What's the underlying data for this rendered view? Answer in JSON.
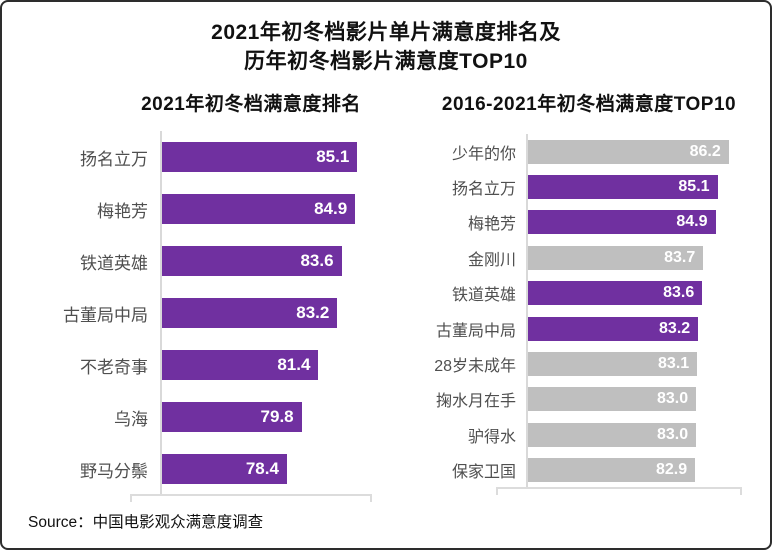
{
  "page": {
    "title_line1": "2021年初冬档影片单片满意度排名及",
    "title_line2": "历年初冬档影片满意度TOP10",
    "source_label": "Source：",
    "source_text": "中国电影观众满意度调查"
  },
  "colors": {
    "purple": "#7030A0",
    "gray": "#BFBFBF",
    "axis_line": "#D9D9D9",
    "label_text": "#4F4F4F",
    "value_text": "#FFFFFF",
    "title_text": "#111111"
  },
  "chart_data": [
    {
      "type": "bar",
      "orientation": "horizontal",
      "title": "2021年初冬档满意度排名",
      "categories": [
        "扬名立万",
        "梅艳芳",
        "铁道英雄",
        "古董局中局",
        "不老奇事",
        "乌海",
        "野马分鬃"
      ],
      "values": [
        85.1,
        84.9,
        83.6,
        83.2,
        81.4,
        79.8,
        78.4
      ],
      "bar_colors": [
        "purple",
        "purple",
        "purple",
        "purple",
        "purple",
        "purple",
        "purple"
      ],
      "xlim": [
        66.5,
        86.5
      ],
      "value_label_position": "inside-end",
      "grid": false,
      "legend": false
    },
    {
      "type": "bar",
      "orientation": "horizontal",
      "title": "2016-2021年初冬档满意度TOP10",
      "categories": [
        "少年的你",
        "扬名立万",
        "梅艳芳",
        "金刚川",
        "铁道英雄",
        "古董局中局",
        "28岁未成年",
        "掬水月在手",
        "驴得水",
        "保家卫国"
      ],
      "values": [
        86.2,
        85.1,
        84.9,
        83.7,
        83.6,
        83.2,
        83.1,
        83.0,
        83.0,
        82.9
      ],
      "bar_colors": [
        "gray",
        "purple",
        "purple",
        "gray",
        "purple",
        "purple",
        "gray",
        "gray",
        "gray",
        "gray"
      ],
      "xlim": [
        66.5,
        87.5
      ],
      "value_label_position": "inside-end",
      "grid": false,
      "legend": false
    }
  ]
}
